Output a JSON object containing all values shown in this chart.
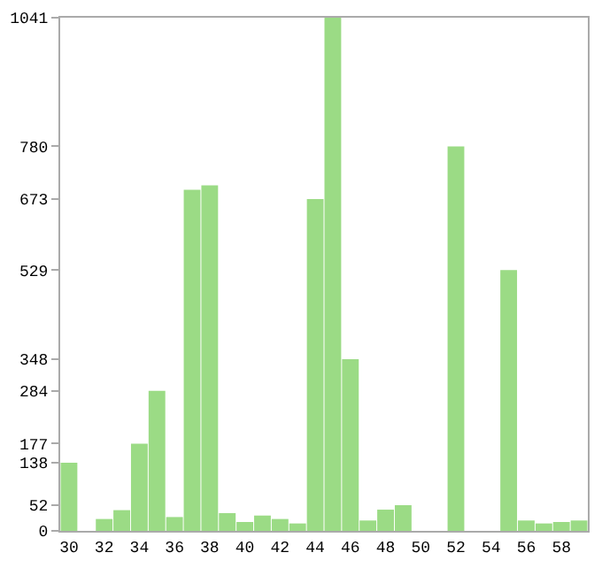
{
  "chart_data": {
    "type": "bar",
    "categories": [
      "30",
      null,
      "32",
      null,
      "34",
      null,
      "36",
      null,
      "38",
      null,
      "40",
      null,
      "42",
      null,
      "44",
      null,
      "46",
      null,
      "48",
      null,
      "50",
      null,
      "52",
      null,
      "54",
      null,
      "56",
      null,
      "58",
      null
    ],
    "values": [
      138,
      0,
      24,
      42,
      177,
      284,
      28,
      692,
      701,
      36,
      18,
      31,
      24,
      15,
      673,
      1041,
      348,
      21,
      43,
      52,
      0,
      0,
      780,
      0,
      0,
      529,
      21,
      15,
      18,
      21
    ],
    "color": "#9bdb85",
    "ylim": [
      0,
      1041
    ],
    "yticks": [
      0,
      52,
      138,
      177,
      284,
      348,
      529,
      673,
      780,
      1041
    ]
  }
}
